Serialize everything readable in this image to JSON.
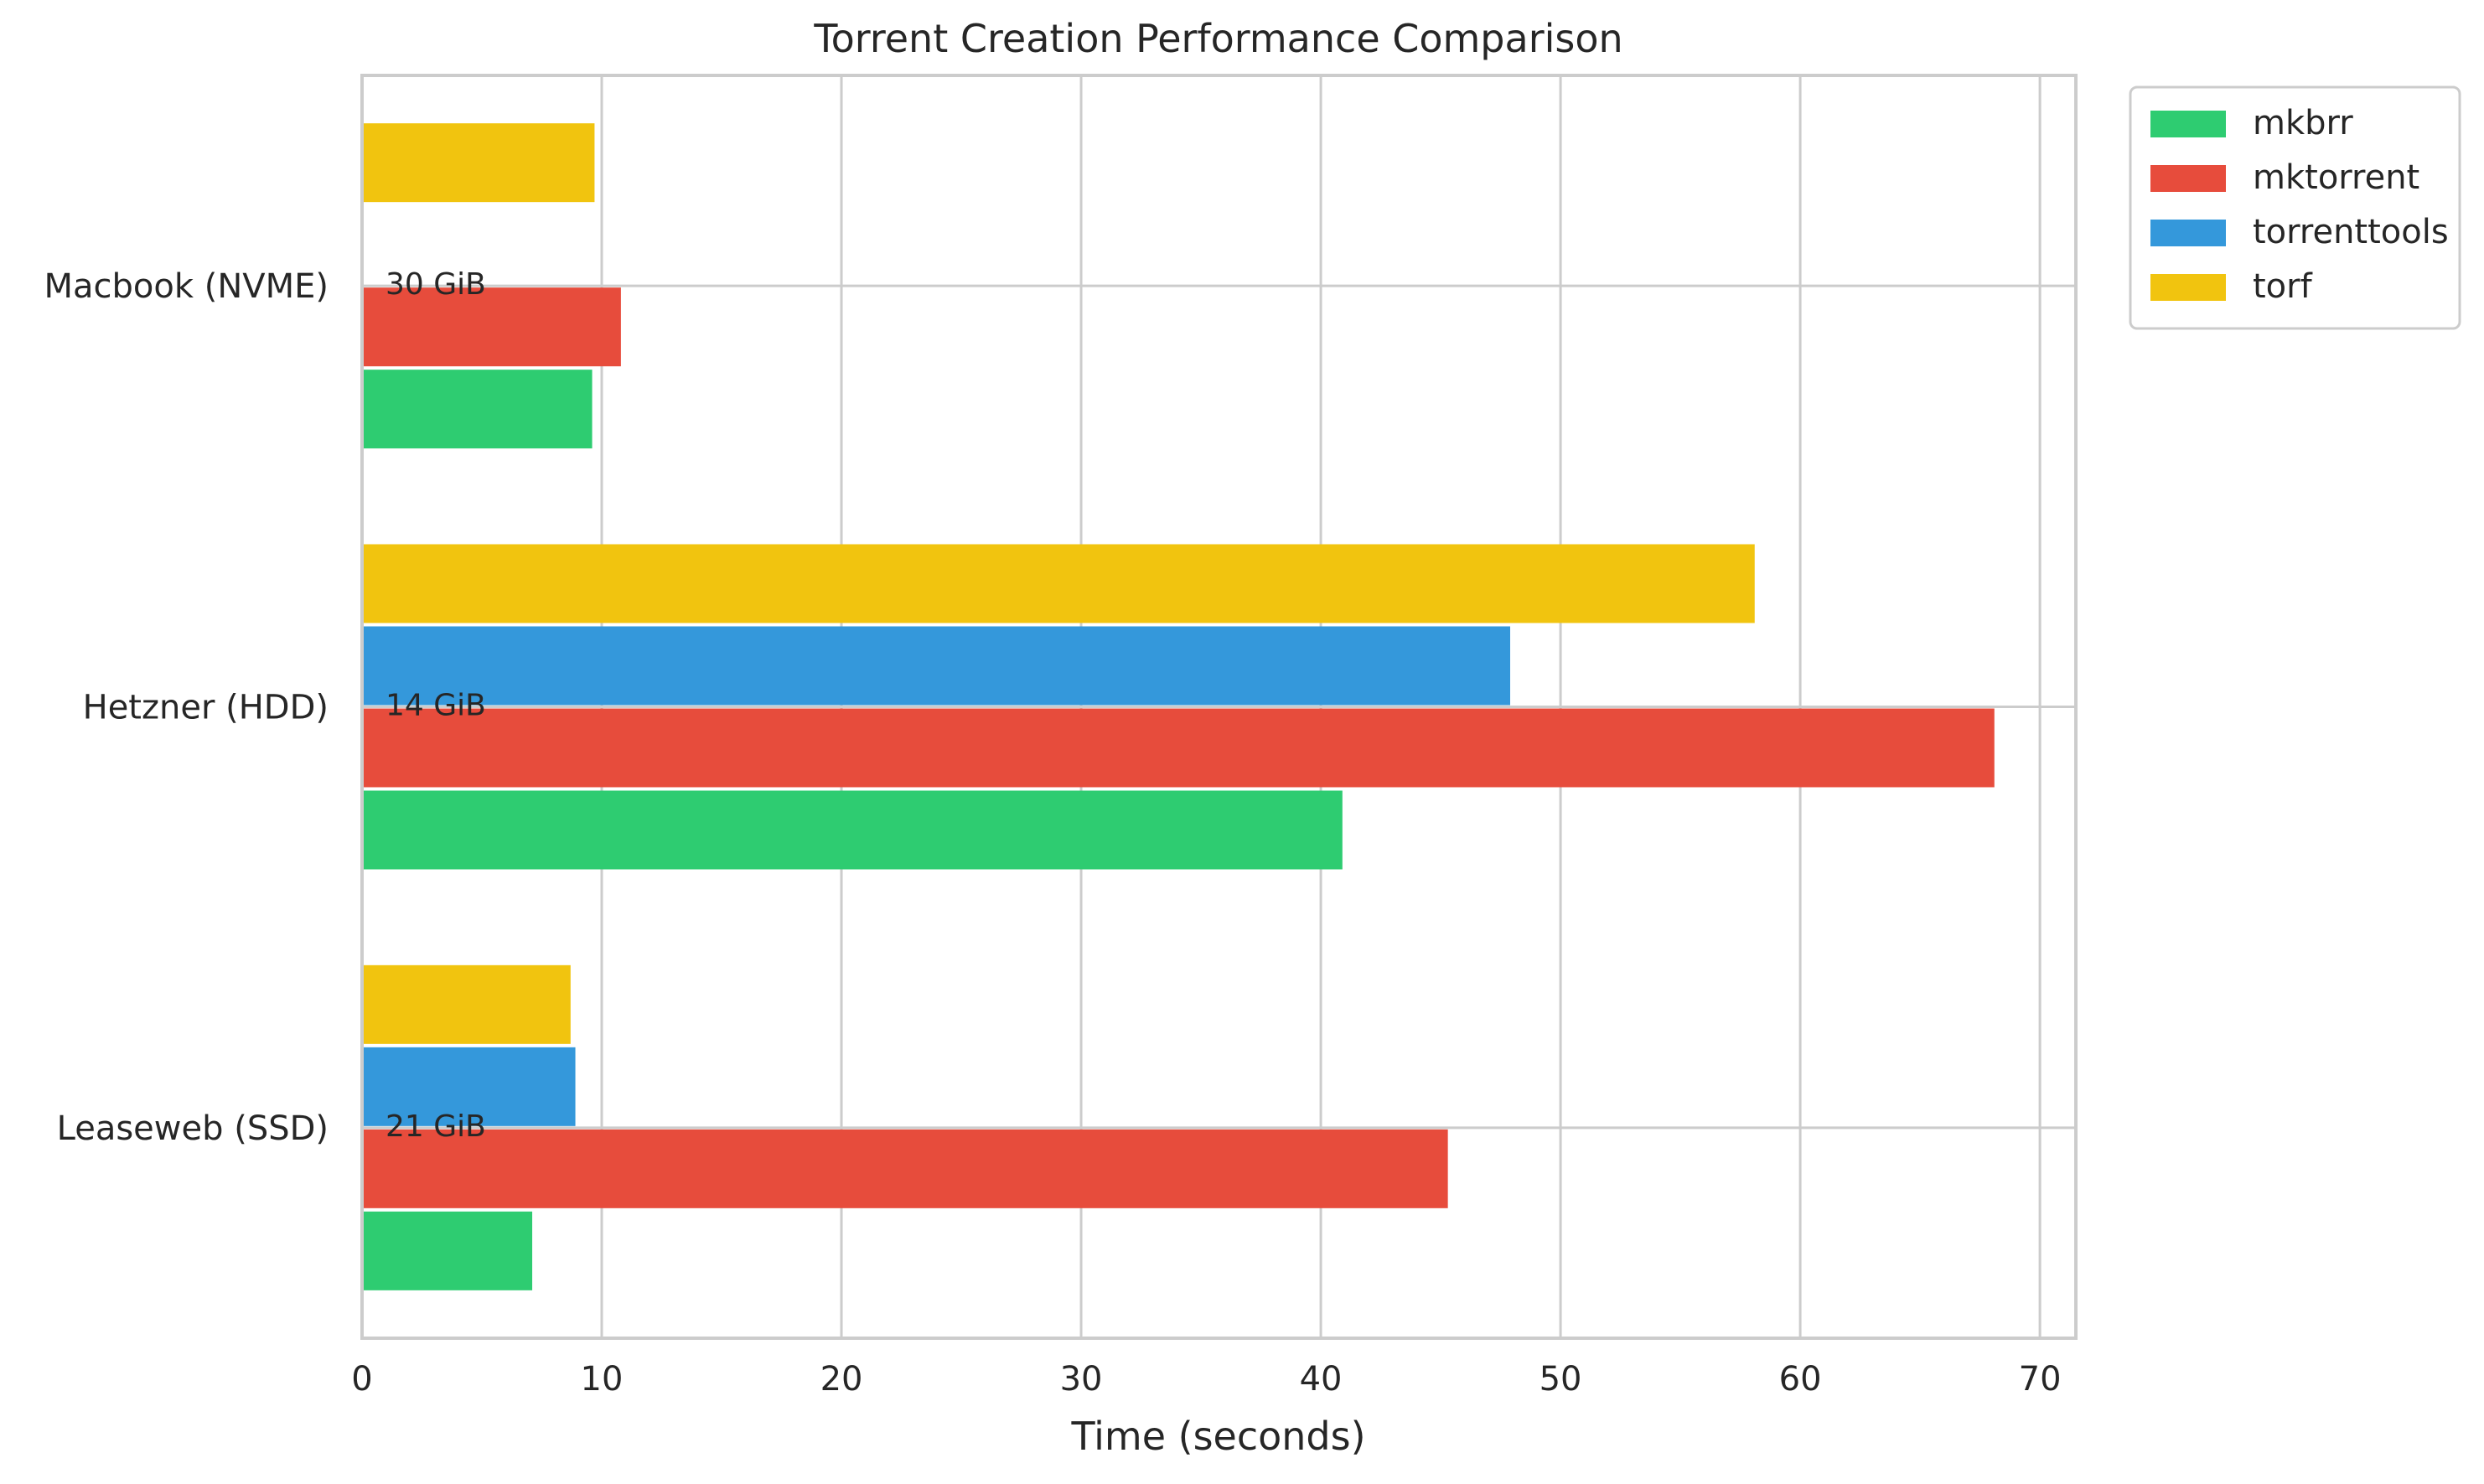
{
  "chart_data": {
    "type": "bar",
    "orientation": "horizontal",
    "title": "Torrent Creation Performance Comparison",
    "xlabel": "Time (seconds)",
    "ylabel": "",
    "xlim": [
      0,
      71.5
    ],
    "x_ticks": [
      0,
      10,
      20,
      30,
      40,
      50,
      60,
      70
    ],
    "grid": true,
    "legend_position": "outside-top-right",
    "categories": [
      "Macbook (NVME)",
      "Hetzner (HDD)",
      "Leaseweb (SSD)"
    ],
    "category_annotations": [
      "30 GiB",
      "14 GiB",
      "21 GiB"
    ],
    "series": [
      {
        "name": "mkbrr",
        "color": "#2ecc71",
        "values": [
          9.6,
          40.9,
          7.1
        ]
      },
      {
        "name": "mktorrent",
        "color": "#e74c3c",
        "values": [
          10.8,
          68.1,
          45.3
        ]
      },
      {
        "name": "torrenttools",
        "color": "#3498db",
        "values": [
          null,
          47.9,
          8.9
        ]
      },
      {
        "name": "torf",
        "color": "#f1c40f",
        "values": [
          9.7,
          58.1,
          8.7
        ]
      }
    ]
  }
}
